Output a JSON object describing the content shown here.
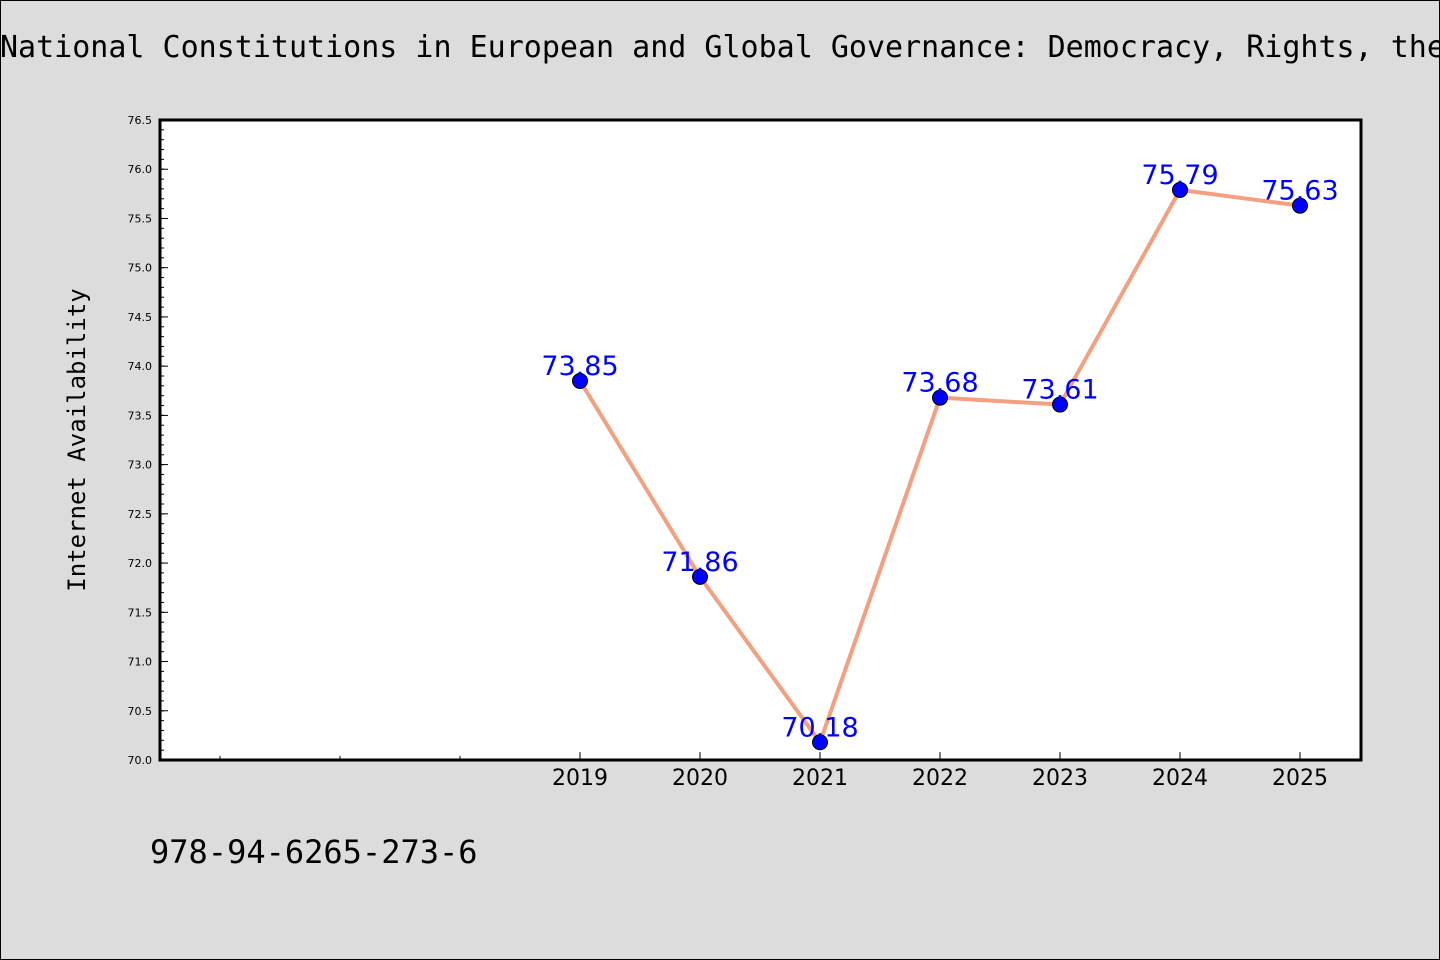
{
  "page": {
    "background": "#dcdcdc",
    "title": "National Constitutions in European and Global Governance: Democracy, Rights, the",
    "footer_text": "978-94-6265-273-6"
  },
  "chart_data": {
    "type": "line",
    "title": "National Constitutions in European and Global Governance: Democracy, Rights, the",
    "xlabel": "",
    "ylabel": "Internet Availability",
    "categories": [
      "2019",
      "2020",
      "2021",
      "2022",
      "2023",
      "2024",
      "2025"
    ],
    "series": [
      {
        "values": [
          73.85,
          71.86,
          70.18,
          73.68,
          73.61,
          75.79,
          75.63
        ],
        "line_color": "#f4a080",
        "marker_color": "#0000ff"
      }
    ],
    "data_labels": [
      "73.85",
      "71.86",
      "70.18",
      "73.68",
      "73.61",
      "75.79",
      "75.63"
    ],
    "data_label_color": "#0000ff",
    "ylim": [
      70.0,
      76.5
    ],
    "y_ticks": [
      "70.0",
      "70.5",
      "71.0",
      "71.5",
      "72.0",
      "72.5",
      "73.0",
      "73.5",
      "74.0",
      "74.5",
      "75.0",
      "75.5",
      "76.0",
      "76.5"
    ],
    "grid": false,
    "legend": "none"
  }
}
